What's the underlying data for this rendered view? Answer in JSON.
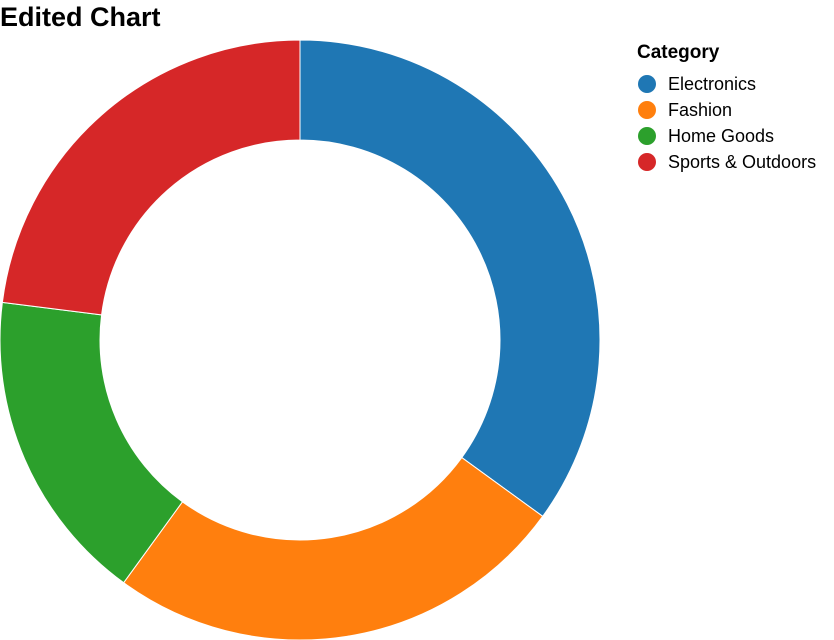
{
  "chart_data": {
    "type": "pie",
    "variant": "donut",
    "title": "Edited Chart",
    "legend": {
      "title": "Category",
      "placement": "top-right"
    },
    "categories": [
      "Electronics",
      "Fashion",
      "Home Goods",
      "Sports & Outdoors"
    ],
    "values": [
      35,
      25,
      17,
      23
    ],
    "colors": [
      "#1f77b4",
      "#ff7f0e",
      "#2ca02c",
      "#d62728"
    ]
  }
}
